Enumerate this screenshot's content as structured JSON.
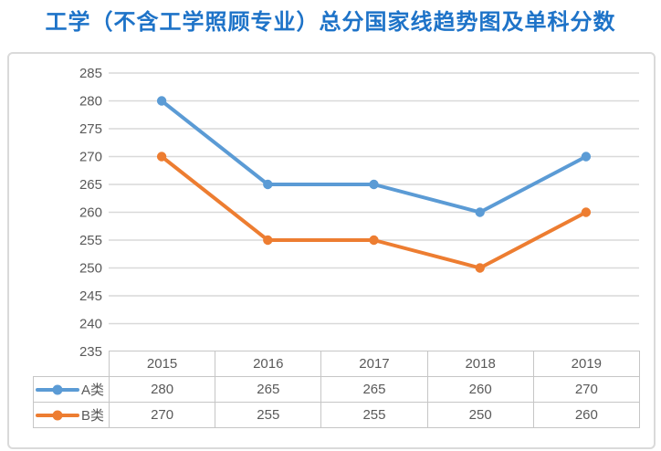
{
  "title": {
    "text": "工学（不含工学照顾专业）总分国家线趋势图及单科分数",
    "color": "#1E73C8"
  },
  "chart_data": {
    "type": "line",
    "title": "工学（不含工学照顾专业）总分国家线趋势图及单科分数",
    "categories": [
      "2015",
      "2016",
      "2017",
      "2018",
      "2019"
    ],
    "series": [
      {
        "name": "A类",
        "color": "#5B9BD5",
        "values": [
          280,
          265,
          265,
          260,
          270
        ]
      },
      {
        "name": "B类",
        "color": "#ED7D31",
        "values": [
          270,
          255,
          255,
          250,
          260
        ]
      }
    ],
    "ylim": [
      235,
      285
    ],
    "yticks": [
      285,
      280,
      275,
      270,
      265,
      260,
      255,
      250,
      245,
      240,
      235
    ],
    "grid": true,
    "legend_position": "table-left",
    "marker": "circle",
    "colors": {
      "gridline": "#D9D9D9",
      "axis_text": "#595959",
      "table_border": "#C6C6C6"
    }
  }
}
